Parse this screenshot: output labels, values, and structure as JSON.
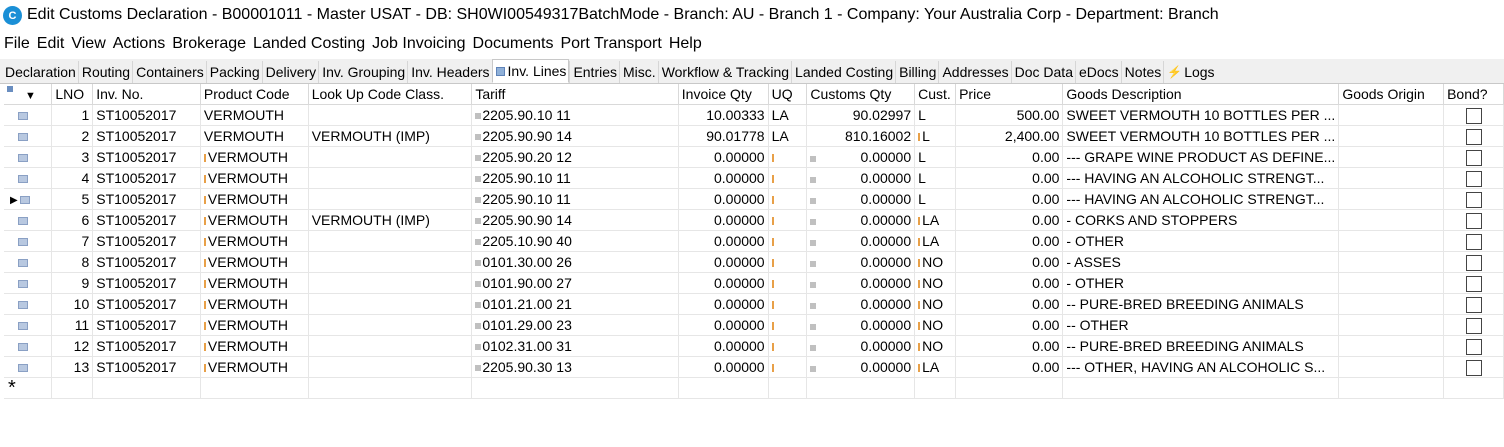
{
  "window": {
    "app_icon_letters": "C",
    "title": "Edit Customs Declaration - B00001011 - Master USAT - DB: SH0WI00549317BatchMode - Branch: AU - Branch 1 - Company: Your Australia Corp - Department: Branch"
  },
  "menu": [
    "File",
    "Edit",
    "View",
    "Actions",
    "Brokerage",
    "Landed Costing",
    "Job Invoicing",
    "Documents",
    "Port Transport",
    "Help"
  ],
  "tabs": [
    "Declaration",
    "Routing",
    "Containers",
    "Packing",
    "Delivery",
    "Inv. Grouping",
    "Inv. Headers",
    "Inv. Lines",
    "Entries",
    "Misc.",
    "Workflow & Tracking",
    "Landed Costing",
    "Billing",
    "Addresses",
    "Doc Data",
    "eDocs",
    "Notes",
    "Logs"
  ],
  "active_tab": "Inv. Lines",
  "colors": {
    "orange_cell": "#fcd3a8",
    "blue_cell": "#b3d7f8",
    "gray_cell": "#c9c9c9"
  },
  "columns": {
    "lno": "LNO",
    "inv_no": "Inv. No.",
    "product_code": "Product Code",
    "lookup": "Look Up Code Class.",
    "tariff": "Tariff",
    "invoice_qty": "Invoice Qty",
    "uq": "UQ",
    "customs_qty": "Customs Qty",
    "cust": "Cust.",
    "price": "Price",
    "goods_desc": "Goods Description",
    "goods_origin": "Goods Origin",
    "bond": "Bond?"
  },
  "rows": [
    {
      "lno": "1",
      "inv": "ST10052017",
      "product": "VERMOUTH",
      "lookup": "",
      "tariff": "2205.90.10 11",
      "invqty": "10.00333",
      "uq": "LA",
      "custqty": "90.02997",
      "cust": "L",
      "price": "500.00",
      "desc": "SWEET VERMOUTH 10 BOTTLES PER ...",
      "origin": ""
    },
    {
      "lno": "2",
      "inv": "ST10052017",
      "product": "VERMOUTH",
      "lookup": "VERMOUTH (IMP)",
      "tariff": "2205.90.90 14",
      "invqty": "90.01778",
      "uq": "LA",
      "custqty": "810.16002",
      "cust": "L",
      "price": "2,400.00",
      "desc": "SWEET VERMOUTH 10 BOTTLES PER ...",
      "origin": ""
    },
    {
      "lno": "3",
      "inv": "ST10052017",
      "product": "VERMOUTH",
      "lookup": "",
      "tariff": "2205.90.20 12",
      "invqty": "0.00000",
      "uq": "",
      "custqty": "0.00000",
      "cust": "L",
      "price": "0.00",
      "desc": "--- GRAPE WINE PRODUCT AS DEFINE...",
      "origin": ""
    },
    {
      "lno": "4",
      "inv": "ST10052017",
      "product": "VERMOUTH",
      "lookup": "",
      "tariff": "2205.90.10 11",
      "invqty": "0.00000",
      "uq": "",
      "custqty": "0.00000",
      "cust": "L",
      "price": "0.00",
      "desc": "--- HAVING AN ALCOHOLIC STRENGT...",
      "origin": ""
    },
    {
      "lno": "5",
      "inv": "ST10052017",
      "product": "VERMOUTH",
      "lookup": "",
      "tariff": "2205.90.10 11",
      "invqty": "0.00000",
      "uq": "",
      "custqty": "0.00000",
      "cust": "L",
      "price": "0.00",
      "desc": "--- HAVING AN ALCOHOLIC STRENGT...",
      "origin": ""
    },
    {
      "lno": "6",
      "inv": "ST10052017",
      "product": "VERMOUTH",
      "lookup": "VERMOUTH (IMP)",
      "tariff": "2205.90.90 14",
      "invqty": "0.00000",
      "uq": "",
      "custqty": "0.00000",
      "cust": "LA",
      "price": "0.00",
      "desc": "- CORKS AND STOPPERS",
      "origin": ""
    },
    {
      "lno": "7",
      "inv": "ST10052017",
      "product": "VERMOUTH",
      "lookup": "",
      "tariff": "2205.10.90 40",
      "invqty": "0.00000",
      "uq": "",
      "custqty": "0.00000",
      "cust": "LA",
      "price": "0.00",
      "desc": "- OTHER",
      "origin": ""
    },
    {
      "lno": "8",
      "inv": "ST10052017",
      "product": "VERMOUTH",
      "lookup": "",
      "tariff": "0101.30.00 26",
      "invqty": "0.00000",
      "uq": "",
      "custqty": "0.00000",
      "cust": "NO",
      "price": "0.00",
      "desc": "- ASSES",
      "origin": ""
    },
    {
      "lno": "9",
      "inv": "ST10052017",
      "product": "VERMOUTH",
      "lookup": "",
      "tariff": "0101.90.00 27",
      "invqty": "0.00000",
      "uq": "",
      "custqty": "0.00000",
      "cust": "NO",
      "price": "0.00",
      "desc": "- OTHER",
      "origin": ""
    },
    {
      "lno": "10",
      "inv": "ST10052017",
      "product": "VERMOUTH",
      "lookup": "",
      "tariff": "0101.21.00 21",
      "invqty": "0.00000",
      "uq": "",
      "custqty": "0.00000",
      "cust": "NO",
      "price": "0.00",
      "desc": "-- PURE-BRED BREEDING ANIMALS",
      "origin": ""
    },
    {
      "lno": "11",
      "inv": "ST10052017",
      "product": "VERMOUTH",
      "lookup": "",
      "tariff": "0101.29.00 23",
      "invqty": "0.00000",
      "uq": "",
      "custqty": "0.00000",
      "cust": "NO",
      "price": "0.00",
      "desc": "-- OTHER",
      "origin": ""
    },
    {
      "lno": "12",
      "inv": "ST10052017",
      "product": "VERMOUTH",
      "lookup": "",
      "tariff": "0102.31.00 31",
      "invqty": "0.00000",
      "uq": "",
      "custqty": "0.00000",
      "cust": "NO",
      "price": "0.00",
      "desc": "-- PURE-BRED BREEDING ANIMALS",
      "origin": ""
    },
    {
      "lno": "13",
      "inv": "ST10052017",
      "product": "VERMOUTH",
      "lookup": "",
      "tariff": "2205.90.30 13",
      "invqty": "0.00000",
      "uq": "",
      "custqty": "0.00000",
      "cust": "LA",
      "price": "0.00",
      "desc": "--- OTHER, HAVING AN ALCOHOLIC S...",
      "origin": ""
    }
  ],
  "current_row": "5",
  "new_row_marker": "*"
}
